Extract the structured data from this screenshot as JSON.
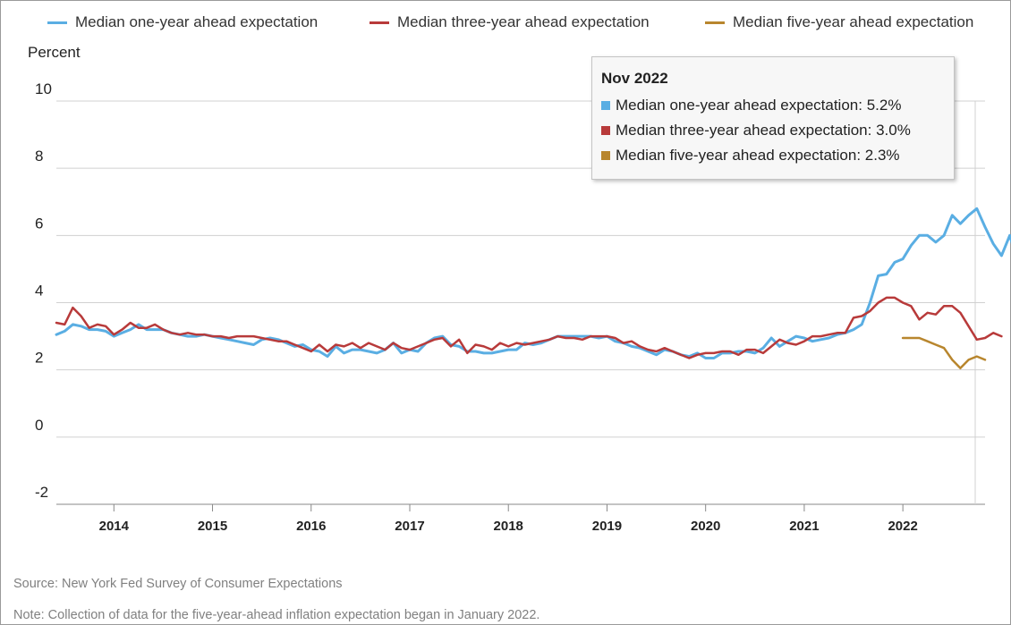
{
  "chart_data": {
    "type": "line",
    "ylabel": "Percent",
    "ylim": [
      -2,
      10
    ],
    "yticks": [
      -2,
      0,
      2,
      4,
      6,
      8,
      10
    ],
    "xlim": [
      "2013-06",
      "2022-11"
    ],
    "xticks": [
      "2014",
      "2015",
      "2016",
      "2017",
      "2018",
      "2019",
      "2020",
      "2021",
      "2022"
    ],
    "grid": true,
    "legend_position": "top",
    "series": [
      {
        "name": "Median one-year ahead expectation",
        "color": "#5aaee3",
        "start": "2013-06",
        "values": [
          3.05,
          3.15,
          3.35,
          3.3,
          3.2,
          3.2,
          3.15,
          3.0,
          3.1,
          3.2,
          3.35,
          3.2,
          3.2,
          3.2,
          3.1,
          3.05,
          3.0,
          3.0,
          3.05,
          3.0,
          2.95,
          2.9,
          2.85,
          2.8,
          2.75,
          2.9,
          2.95,
          2.9,
          2.8,
          2.7,
          2.75,
          2.6,
          2.55,
          2.4,
          2.7,
          2.5,
          2.6,
          2.6,
          2.55,
          2.5,
          2.6,
          2.8,
          2.5,
          2.6,
          2.55,
          2.8,
          2.95,
          3.0,
          2.75,
          2.7,
          2.55,
          2.55,
          2.5,
          2.5,
          2.55,
          2.6,
          2.6,
          2.8,
          2.75,
          2.8,
          2.9,
          3.0,
          3.0,
          3.0,
          3.0,
          3.0,
          2.95,
          3.0,
          2.85,
          2.8,
          2.7,
          2.65,
          2.55,
          2.45,
          2.6,
          2.55,
          2.45,
          2.4,
          2.5,
          2.35,
          2.35,
          2.5,
          2.5,
          2.55,
          2.55,
          2.5,
          2.65,
          2.95,
          2.7,
          2.85,
          3.0,
          2.95,
          2.85,
          2.9,
          2.95,
          3.05,
          3.1,
          3.2,
          3.35,
          4.0,
          4.8,
          4.85,
          5.2,
          5.3,
          5.7,
          6.0,
          6.0,
          5.8,
          6.0,
          6.6,
          6.35,
          6.6,
          6.8,
          6.25,
          5.75,
          5.4,
          6.0,
          5.2
        ]
      },
      {
        "name": "Median three-year ahead expectation",
        "color": "#b83a3a",
        "start": "2013-06",
        "values": [
          3.4,
          3.35,
          3.85,
          3.6,
          3.25,
          3.35,
          3.3,
          3.05,
          3.2,
          3.4,
          3.25,
          3.25,
          3.35,
          3.2,
          3.1,
          3.05,
          3.1,
          3.05,
          3.05,
          3.0,
          3.0,
          2.95,
          3.0,
          3.0,
          3.0,
          2.95,
          2.9,
          2.85,
          2.85,
          2.75,
          2.65,
          2.55,
          2.75,
          2.55,
          2.75,
          2.7,
          2.8,
          2.65,
          2.8,
          2.7,
          2.6,
          2.8,
          2.65,
          2.6,
          2.7,
          2.8,
          2.9,
          2.95,
          2.7,
          2.9,
          2.5,
          2.75,
          2.7,
          2.6,
          2.8,
          2.7,
          2.8,
          2.75,
          2.8,
          2.85,
          2.9,
          3.0,
          2.95,
          2.95,
          2.9,
          3.0,
          3.0,
          3.0,
          2.95,
          2.8,
          2.85,
          2.7,
          2.6,
          2.55,
          2.65,
          2.55,
          2.45,
          2.35,
          2.45,
          2.5,
          2.5,
          2.55,
          2.55,
          2.45,
          2.6,
          2.6,
          2.5,
          2.7,
          2.9,
          2.8,
          2.75,
          2.85,
          3.0,
          3.0,
          3.05,
          3.1,
          3.1,
          3.55,
          3.6,
          3.75,
          4.0,
          4.15,
          4.15,
          4.0,
          3.9,
          3.5,
          3.7,
          3.65,
          3.9,
          3.9,
          3.7,
          3.3,
          2.9,
          2.95,
          3.1,
          3.0
        ]
      },
      {
        "name": "Median five-year ahead expectation",
        "color": "#b8862e",
        "start": "2022-01",
        "values": [
          2.95,
          2.95,
          2.95,
          2.85,
          2.75,
          2.65,
          2.3,
          2.05,
          2.3,
          2.4,
          2.3
        ]
      }
    ]
  },
  "tooltip": {
    "title": "Nov 2022",
    "rows": [
      {
        "label": "Median one-year ahead expectation: 5.2%",
        "color": "#5aaee3"
      },
      {
        "label": "Median three-year ahead expectation: 3.0%",
        "color": "#b83a3a"
      },
      {
        "label": "Median five-year ahead expectation: 2.3%",
        "color": "#b8862e"
      }
    ]
  },
  "footer": {
    "source": "Source: New York Fed Survey of Consumer Expectations",
    "note": "Note: Collection of data for the five-year-ahead inflation expectation began in January 2022."
  }
}
